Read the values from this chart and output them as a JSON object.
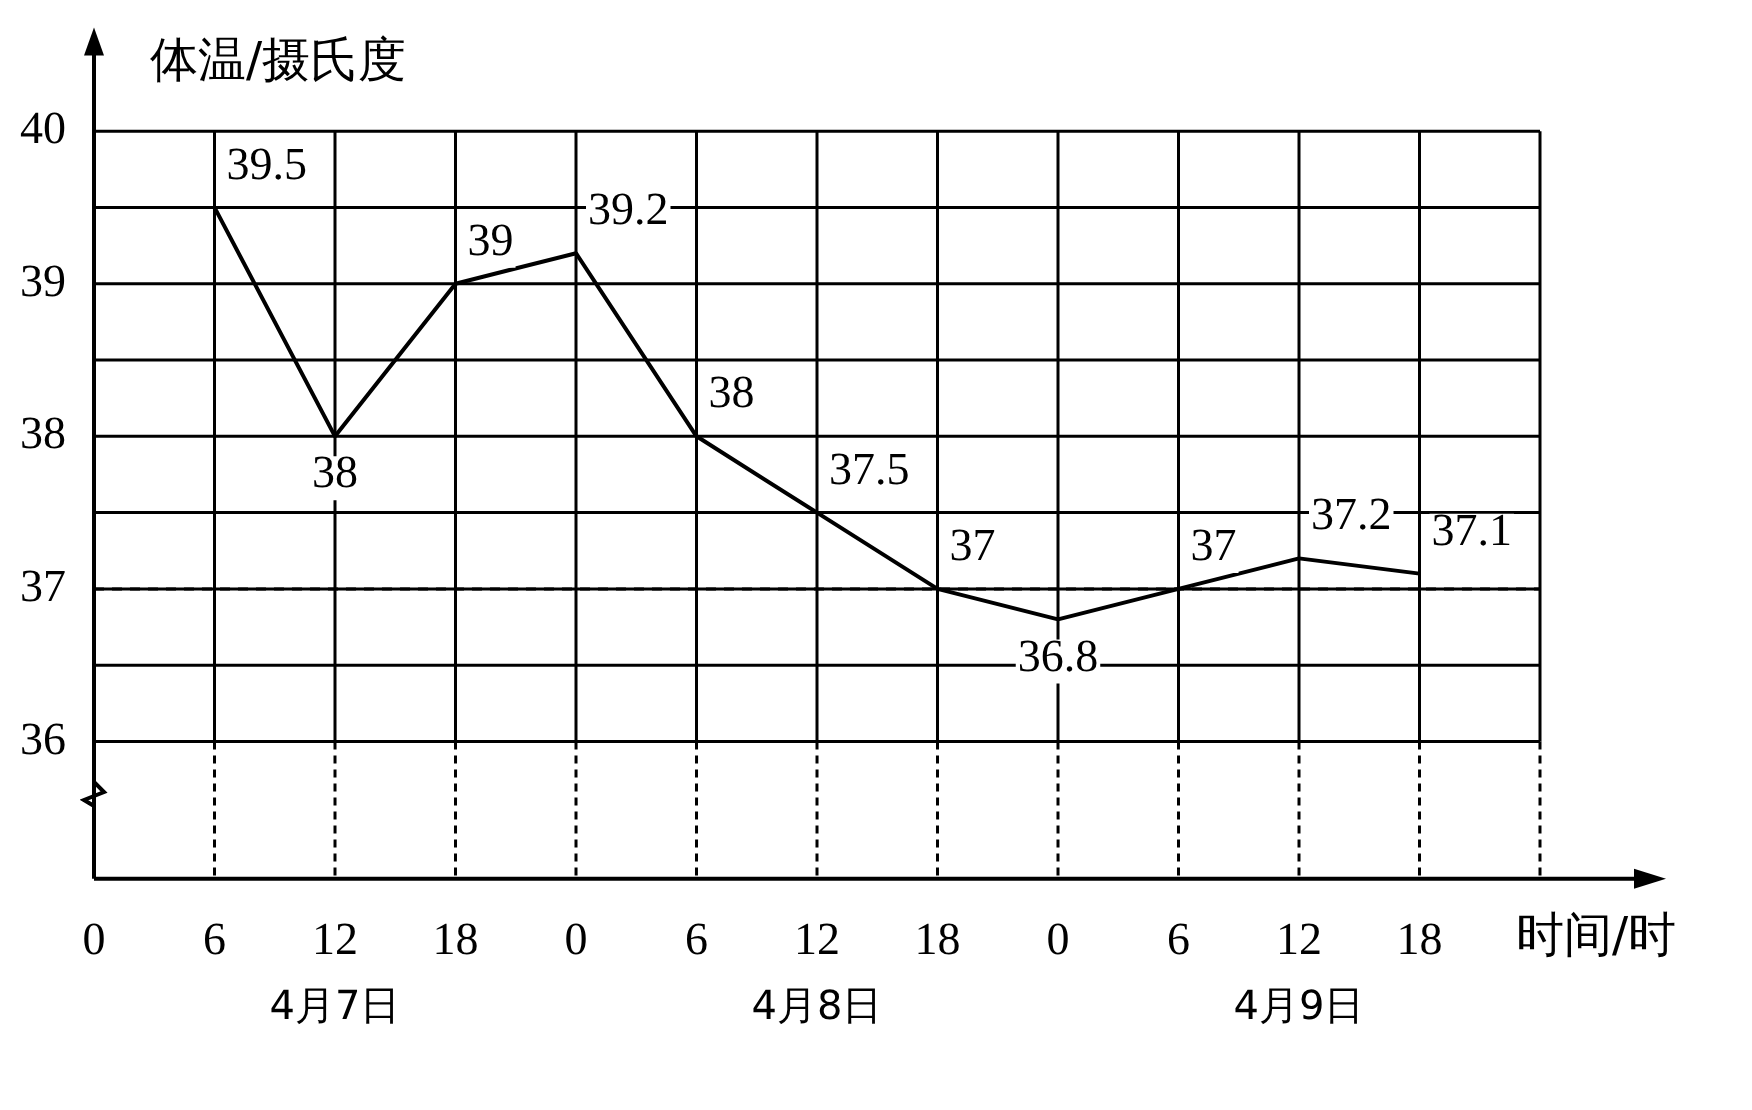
{
  "chart_data": {
    "type": "line",
    "ylabel": "体温/摄氏度",
    "xlabel": "时间/时",
    "categories": [
      "0",
      "6",
      "12",
      "18",
      "0",
      "6",
      "12",
      "18",
      "0",
      "6",
      "12",
      "18",
      null
    ],
    "values": [
      null,
      39.5,
      38,
      39,
      39.2,
      38,
      37.5,
      37,
      36.8,
      37,
      37.2,
      37.1,
      null
    ],
    "color": "#000000",
    "data_labels": true,
    "marker": "none",
    "line_style": "solid",
    "grid": true,
    "ylim": [
      35.1,
      40.6
    ],
    "yticks": [
      36,
      {
        "value": 36.5,
        "label": null
      },
      37,
      {
        "value": 37.5,
        "label": null
      },
      38,
      {
        "value": 38.5,
        "label": null
      },
      39,
      {
        "value": 39.5,
        "label": null
      },
      40
    ],
    "ref_lines": [
      {
        "axis": "y",
        "value": 37,
        "line_style": "dashed",
        "color": "#000000"
      }
    ],
    "annotations": [
      "4月7日",
      "4月8日",
      "4月9日"
    ]
  }
}
